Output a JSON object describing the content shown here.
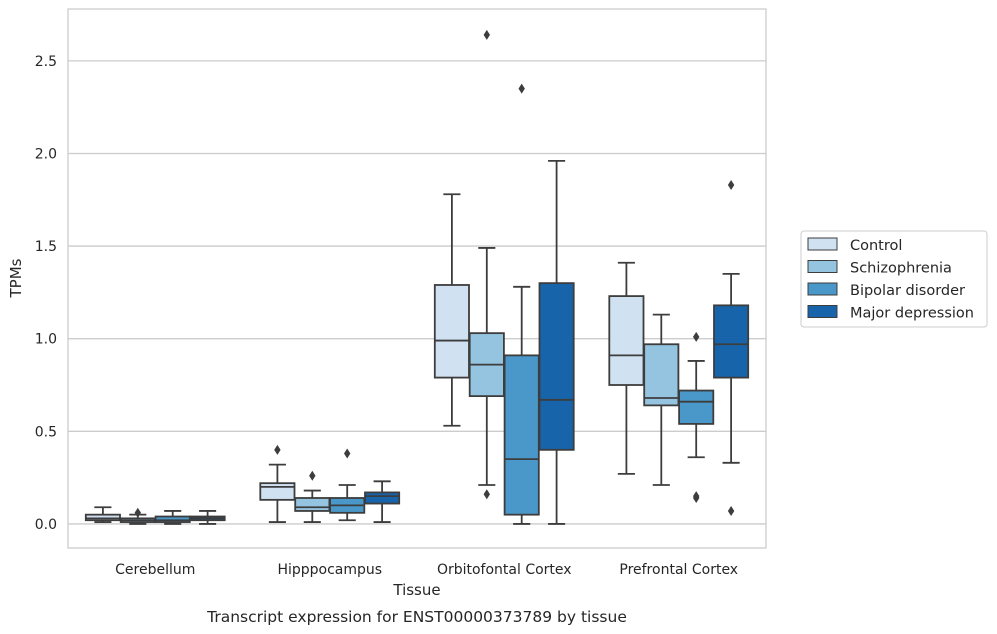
{
  "chart_data": {
    "type": "box",
    "title": "",
    "caption": "Transcript expression for ENST00000373789 by tissue",
    "xlabel": "Tissue",
    "ylabel": "TPMs",
    "ylim": [
      -0.13,
      2.78
    ],
    "yticks": [
      "0.0",
      "0.5",
      "1.0",
      "1.5",
      "2.0",
      "2.5"
    ],
    "categories": [
      "Cerebellum",
      "Hipppocampus",
      "Orbitofontal Cortex",
      "Prefrontal Cortex"
    ],
    "grid": "horizontal",
    "legend_position": "right",
    "series": [
      {
        "name": "Control",
        "color": "#d0e1f2",
        "boxes": [
          {
            "whislo": 0.01,
            "q1": 0.02,
            "med": 0.03,
            "q3": 0.05,
            "whishi": 0.09,
            "fliers": []
          },
          {
            "whislo": 0.01,
            "q1": 0.13,
            "med": 0.2,
            "q3": 0.22,
            "whishi": 0.32,
            "fliers": [
              0.4
            ]
          },
          {
            "whislo": 0.53,
            "q1": 0.79,
            "med": 0.99,
            "q3": 1.29,
            "whishi": 1.78,
            "fliers": []
          },
          {
            "whislo": 0.27,
            "q1": 0.75,
            "med": 0.91,
            "q3": 1.23,
            "whishi": 1.41,
            "fliers": []
          }
        ]
      },
      {
        "name": "Schizophrenia",
        "color": "#94c4df",
        "boxes": [
          {
            "whislo": 0.0,
            "q1": 0.01,
            "med": 0.02,
            "q3": 0.03,
            "whishi": 0.05,
            "fliers": [
              0.06
            ]
          },
          {
            "whislo": 0.01,
            "q1": 0.07,
            "med": 0.09,
            "q3": 0.14,
            "whishi": 0.18,
            "fliers": [
              0.26
            ]
          },
          {
            "whislo": 0.21,
            "q1": 0.69,
            "med": 0.86,
            "q3": 1.03,
            "whishi": 1.49,
            "fliers": [
              0.16,
              2.64
            ]
          },
          {
            "whislo": 0.21,
            "q1": 0.64,
            "med": 0.68,
            "q3": 0.97,
            "whishi": 1.13,
            "fliers": []
          }
        ]
      },
      {
        "name": "Bipolar disorder",
        "color": "#4a98c9",
        "boxes": [
          {
            "whislo": 0.0,
            "q1": 0.01,
            "med": 0.02,
            "q3": 0.04,
            "whishi": 0.07,
            "fliers": []
          },
          {
            "whislo": 0.02,
            "q1": 0.06,
            "med": 0.1,
            "q3": 0.14,
            "whishi": 0.21,
            "fliers": [
              0.38
            ]
          },
          {
            "whislo": 0.0,
            "q1": 0.05,
            "med": 0.35,
            "q3": 0.91,
            "whishi": 1.28,
            "fliers": [
              2.35
            ]
          },
          {
            "whislo": 0.36,
            "q1": 0.54,
            "med": 0.66,
            "q3": 0.72,
            "whishi": 0.88,
            "fliers": [
              0.14,
              0.15,
              1.01
            ]
          }
        ]
      },
      {
        "name": "Major depression",
        "color": "#1764ab",
        "boxes": [
          {
            "whislo": 0.0,
            "q1": 0.02,
            "med": 0.03,
            "q3": 0.04,
            "whishi": 0.07,
            "fliers": []
          },
          {
            "whislo": 0.01,
            "q1": 0.11,
            "med": 0.15,
            "q3": 0.17,
            "whishi": 0.23,
            "fliers": []
          },
          {
            "whislo": 0.0,
            "q1": 0.4,
            "med": 0.67,
            "q3": 1.3,
            "whishi": 1.96,
            "fliers": []
          },
          {
            "whislo": 0.33,
            "q1": 0.79,
            "med": 0.97,
            "q3": 1.18,
            "whishi": 1.35,
            "fliers": [
              0.07,
              1.83
            ]
          }
        ]
      }
    ]
  }
}
